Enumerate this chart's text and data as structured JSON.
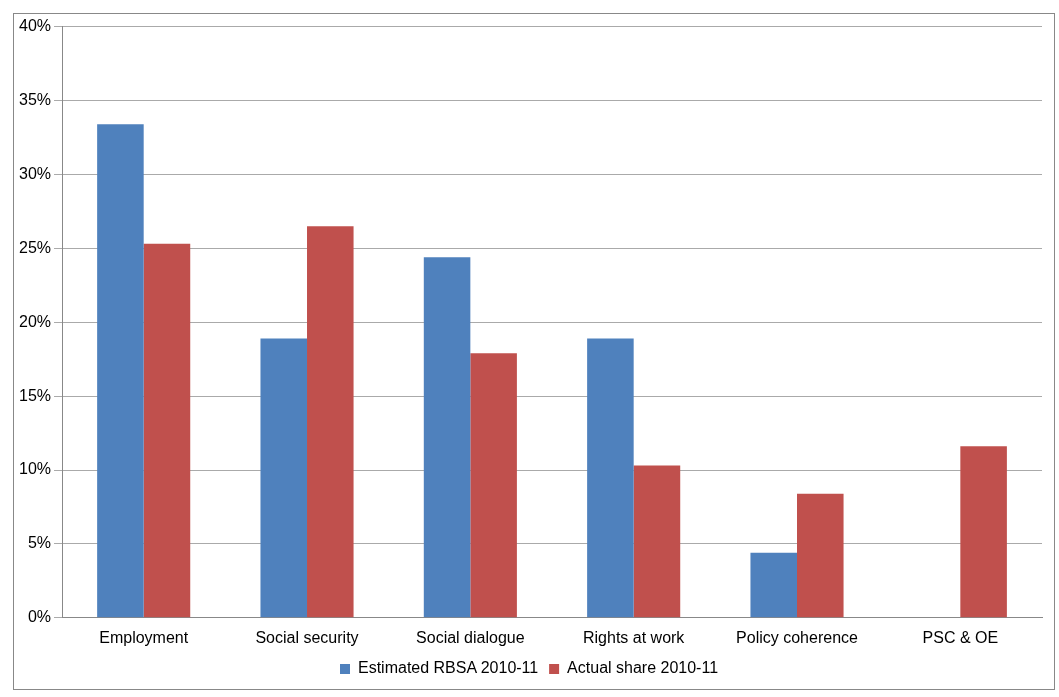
{
  "chart_data": {
    "type": "bar",
    "categories": [
      "Employment",
      "Social security",
      "Social dialogue",
      "Rights at work",
      "Policy coherence",
      "PSC & OE"
    ],
    "series": [
      {
        "name": "Estimated RBSA 2010-11",
        "color": "#4f81bd",
        "values": [
          33.4,
          18.9,
          24.4,
          18.9,
          4.4,
          0
        ]
      },
      {
        "name": "Actual share 2010-11",
        "color": "#c0504d",
        "values": [
          25.3,
          26.5,
          17.9,
          10.3,
          8.4,
          11.6
        ]
      }
    ],
    "ylim": [
      0,
      40
    ],
    "yticks": [
      {
        "value": 0,
        "label": "0%"
      },
      {
        "value": 5,
        "label": "5%"
      },
      {
        "value": 10,
        "label": "10%"
      },
      {
        "value": 15,
        "label": "15%"
      },
      {
        "value": 20,
        "label": "20%"
      },
      {
        "value": 25,
        "label": "25%"
      },
      {
        "value": 30,
        "label": "30%"
      },
      {
        "value": 35,
        "label": "35%"
      },
      {
        "value": 40,
        "label": "40%"
      }
    ],
    "grid": "y",
    "legend": "bottom"
  }
}
